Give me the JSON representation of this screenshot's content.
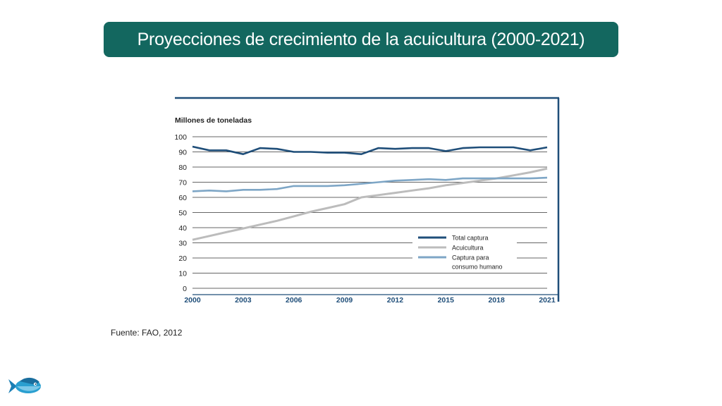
{
  "slide": {
    "title": "Proyecciones de crecimiento de la acuicultura (2000-2021)",
    "source": "Fuente: FAO, 2012"
  },
  "icons": {
    "logo": "fish-icon"
  },
  "colors": {
    "title_bg": "#13675f",
    "total_captura": "#1f4e79",
    "acuicultura": "#bcbcbc",
    "consumo_humano": "#7ea6c6"
  },
  "chart_data": {
    "type": "line",
    "title": "",
    "ylabel": "Millones de toneladas",
    "xlabel": "",
    "xlim": [
      2000,
      2021
    ],
    "ylim": [
      0,
      100
    ],
    "x_ticks": [
      2000,
      2003,
      2006,
      2009,
      2012,
      2015,
      2018,
      2021
    ],
    "y_ticks": [
      0,
      10,
      20,
      30,
      40,
      50,
      60,
      70,
      80,
      90,
      100
    ],
    "grid": true,
    "legend_position": "bottom-right",
    "series": [
      {
        "name": "Total captura",
        "x": [
          2000,
          2001,
          2002,
          2003,
          2004,
          2005,
          2006,
          2007,
          2008,
          2009,
          2010,
          2011,
          2012,
          2013,
          2014,
          2015,
          2016,
          2017,
          2018,
          2019,
          2020,
          2021
        ],
        "values": [
          93.5,
          91,
          91,
          88.5,
          92.5,
          92,
          90,
          90,
          89.5,
          89.5,
          88.5,
          92.5,
          92,
          92.5,
          92.5,
          90.5,
          92.5,
          93,
          93,
          93,
          91,
          93
        ]
      },
      {
        "name": "Acuicultura",
        "x": [
          2000,
          2001,
          2002,
          2003,
          2004,
          2005,
          2006,
          2007,
          2008,
          2009,
          2010,
          2011,
          2012,
          2013,
          2014,
          2015,
          2016,
          2017,
          2018,
          2019,
          2020,
          2021
        ],
        "values": [
          32,
          34.5,
          37,
          39.5,
          42,
          44.5,
          47.5,
          50.5,
          53,
          55.5,
          60,
          61.5,
          63,
          64.5,
          66,
          68,
          69.5,
          71,
          72.5,
          74.5,
          76.5,
          79
        ]
      },
      {
        "name": "Captura para consumo humano",
        "name_lines": [
          "Captura para",
          "consumo humano"
        ],
        "x": [
          2000,
          2001,
          2002,
          2003,
          2004,
          2005,
          2006,
          2007,
          2008,
          2009,
          2010,
          2011,
          2012,
          2013,
          2014,
          2015,
          2016,
          2017,
          2018,
          2019,
          2020,
          2021
        ],
        "values": [
          64,
          64.5,
          64,
          65,
          65,
          65.5,
          67.5,
          67.5,
          67.5,
          68,
          69,
          70,
          71,
          71.5,
          72,
          71.5,
          72.5,
          72.5,
          72.5,
          72.5,
          72.5,
          73
        ]
      }
    ]
  }
}
